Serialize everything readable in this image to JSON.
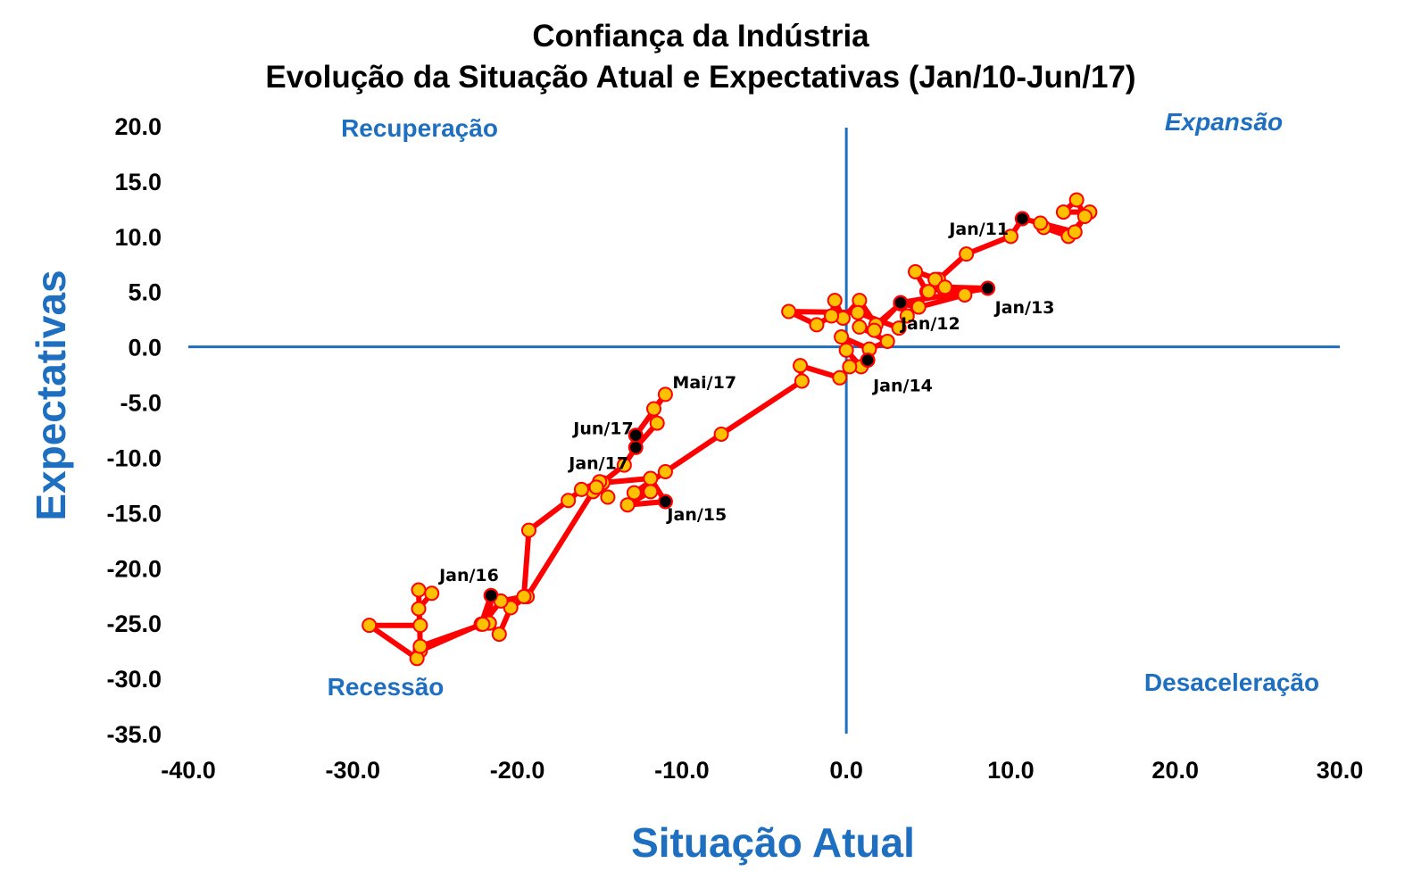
{
  "chart_data": {
    "type": "scatter",
    "title": "Confiança da Indústria",
    "subtitle": "Evolução da Situação Atual e Expectativas (Jan/10-Jun/17)",
    "xlabel": "Situação Atual",
    "ylabel": "Expectativas",
    "xlim": [
      -40,
      30
    ],
    "ylim": [
      -35,
      20
    ],
    "x_ticks": [
      "-40.0",
      "-30.0",
      "-20.0",
      "-10.0",
      "0.0",
      "10.0",
      "20.0",
      "30.0"
    ],
    "y_ticks": [
      "20.0",
      "15.0",
      "10.0",
      "5.0",
      "0.0",
      "-5.0",
      "-10.0",
      "-15.0",
      "-20.0",
      "-25.0",
      "-30.0",
      "-35.0"
    ],
    "quadrants": {
      "top_left": "Recuperação",
      "top_right": "Expansão",
      "bottom_left": "Recessão",
      "bottom_right": "Desaceleração"
    },
    "colors": {
      "line": "#ff0000",
      "marker_fill": "#ffc000",
      "marker_edge": "#ff0000",
      "highlight": "#000000",
      "axis": "#1f6fc1"
    },
    "series": [
      {
        "values": [
          [
            12.0,
            10.8
          ],
          [
            13.5,
            10.0
          ],
          [
            14.8,
            12.2
          ],
          [
            13.2,
            12.2
          ],
          [
            14.0,
            13.3
          ],
          [
            14.5,
            11.8
          ],
          [
            13.9,
            10.4
          ],
          [
            11.8,
            11.2
          ],
          [
            10.7,
            11.6
          ],
          [
            10.0,
            10.0
          ],
          [
            7.3,
            8.4
          ],
          [
            5.6,
            6.1
          ],
          [
            4.2,
            6.8
          ],
          [
            4.9,
            5.0
          ],
          [
            5.9,
            5.3
          ],
          [
            7.2,
            4.7
          ],
          [
            4.4,
            3.6
          ],
          [
            3.3,
            3.9
          ],
          [
            1.8,
            2.0
          ],
          [
            0.8,
            4.2
          ],
          [
            -0.2,
            2.6
          ],
          [
            -0.7,
            4.2
          ],
          [
            -0.9,
            2.8
          ],
          [
            -1.8,
            2.0
          ],
          [
            -3.5,
            3.2
          ],
          [
            0.7,
            3.1
          ],
          [
            3.2,
            1.7
          ],
          [
            3.7,
            2.8
          ],
          [
            5.0,
            5.0
          ],
          [
            5.4,
            6.1
          ],
          [
            6.0,
            5.4
          ],
          [
            8.6,
            5.3
          ],
          [
            3.3,
            4.0
          ],
          [
            1.7,
            1.5
          ],
          [
            0.8,
            1.8
          ],
          [
            2.5,
            0.5
          ],
          [
            1.4,
            -0.2
          ],
          [
            -0.3,
            0.9
          ],
          [
            0.0,
            -0.3
          ],
          [
            0.9,
            -1.8
          ],
          [
            1.3,
            -1.2
          ],
          [
            0.2,
            -1.8
          ],
          [
            -0.4,
            -2.8
          ],
          [
            -2.8,
            -1.7
          ],
          [
            -2.7,
            -3.1
          ],
          [
            -7.6,
            -7.9
          ],
          [
            -11.0,
            -11.3
          ],
          [
            -12.9,
            -13.2
          ],
          [
            -11.9,
            -13.1
          ],
          [
            -13.3,
            -14.3
          ],
          [
            -11.0,
            -14.0
          ],
          [
            -11.9,
            -11.9
          ],
          [
            -14.8,
            -12.3
          ],
          [
            -15.4,
            -13.1
          ],
          [
            -19.4,
            -22.6
          ],
          [
            -20.4,
            -23.6
          ],
          [
            -21.1,
            -26.0
          ],
          [
            -21.7,
            -25.0
          ],
          [
            -21.6,
            -22.5
          ],
          [
            -22.2,
            -25.1
          ],
          [
            -25.9,
            -27.5
          ],
          [
            -26.1,
            -28.2
          ],
          [
            -29.0,
            -25.2
          ],
          [
            -25.9,
            -25.2
          ],
          [
            -26.0,
            -23.7
          ],
          [
            -25.2,
            -22.3
          ],
          [
            -26.0,
            -22.0
          ],
          [
            -25.9,
            -27.1
          ],
          [
            -22.1,
            -25.1
          ],
          [
            -21.0,
            -23.0
          ],
          [
            -19.6,
            -22.6
          ],
          [
            -19.3,
            -16.6
          ],
          [
            -16.9,
            -13.9
          ],
          [
            -16.1,
            -12.9
          ],
          [
            -15.0,
            -12.2
          ],
          [
            -15.2,
            -12.7
          ],
          [
            -14.5,
            -13.6
          ],
          [
            -15.2,
            -12.7
          ],
          [
            -13.5,
            -10.7
          ],
          [
            -12.8,
            -9.1
          ],
          [
            -11.5,
            -6.9
          ],
          [
            -11.7,
            -5.6
          ],
          [
            -11.0,
            -4.3
          ],
          [
            -12.8,
            -8.0
          ]
        ],
        "highlighted": [
          {
            "label": "Jan/11",
            "x": 10.7,
            "y": 11.6
          },
          {
            "label": "Jan/12",
            "x": 3.3,
            "y": 4.0
          },
          {
            "label": "Jan/13",
            "x": 8.6,
            "y": 5.3
          },
          {
            "label": "Jan/14",
            "x": 1.3,
            "y": -1.2
          },
          {
            "label": "Jan/15",
            "x": -11.0,
            "y": -14.0
          },
          {
            "label": "Jan/16",
            "x": -21.6,
            "y": -22.5
          },
          {
            "label": "Jan/17",
            "x": -12.8,
            "y": -9.1
          },
          {
            "label": "Jun/17",
            "x": -12.8,
            "y": -8.0
          }
        ],
        "annotations": [
          {
            "label": "Mai/17",
            "x": -11.0,
            "y": -4.3
          }
        ]
      }
    ]
  }
}
